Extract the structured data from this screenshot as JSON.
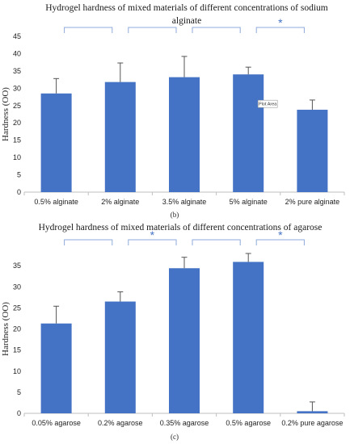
{
  "chart_data": [
    {
      "type": "bar",
      "title_lines": [
        "Hydrogel hardness of mixed materials of different concentrations of sodium",
        "alginate"
      ],
      "ylabel": "Hardness (OO)",
      "ylim": [
        0,
        45
      ],
      "yticks": [
        0,
        5,
        10,
        15,
        20,
        25,
        30,
        35,
        40,
        45
      ],
      "categories": [
        "0.5% alginate",
        "2% alginate",
        "3.5% alginate",
        "5% alginate",
        "2% pure alginate"
      ],
      "values": [
        28.5,
        31.8,
        33.2,
        34.0,
        23.8
      ],
      "errors": [
        4.3,
        5.5,
        6.0,
        2.1,
        2.8
      ],
      "panel_label": "(b)",
      "tooltip": "Plot Area",
      "comparisons": [
        {
          "pair": [
            0,
            1
          ],
          "star": ""
        },
        {
          "pair": [
            1,
            2
          ],
          "star": ""
        },
        {
          "pair": [
            2,
            3
          ],
          "star": ""
        },
        {
          "pair": [
            3,
            4
          ],
          "star": "*"
        }
      ],
      "grid": false
    },
    {
      "type": "bar",
      "title_lines": [
        "Hydrogel hardness of mixed materials of different concentrations of agarose"
      ],
      "ylabel": "Hardness (OO)",
      "ylim": [
        0,
        40
      ],
      "yticks": [
        0,
        5,
        10,
        15,
        20,
        25,
        30,
        35
      ],
      "categories": [
        "0.05% agarose",
        "0.2% agarose",
        "0.35% agarose",
        "0.5% agarose",
        "0.2% pure agarose"
      ],
      "values": [
        21.3,
        26.5,
        34.4,
        35.9,
        0.5
      ],
      "errors": [
        4.1,
        2.3,
        2.6,
        2.0,
        2.2
      ],
      "panel_label": "(c)",
      "comparisons": [
        {
          "pair": [
            0,
            1
          ],
          "star": ""
        },
        {
          "pair": [
            1,
            2
          ],
          "star": "*"
        },
        {
          "pair": [
            2,
            3
          ],
          "star": ""
        },
        {
          "pair": [
            3,
            4
          ],
          "star": "*"
        }
      ],
      "grid": false
    }
  ],
  "colors": {
    "bar": "#4472c4",
    "bracket": "#8faadc",
    "axis": "#bfbfbf",
    "error": "#555555"
  }
}
